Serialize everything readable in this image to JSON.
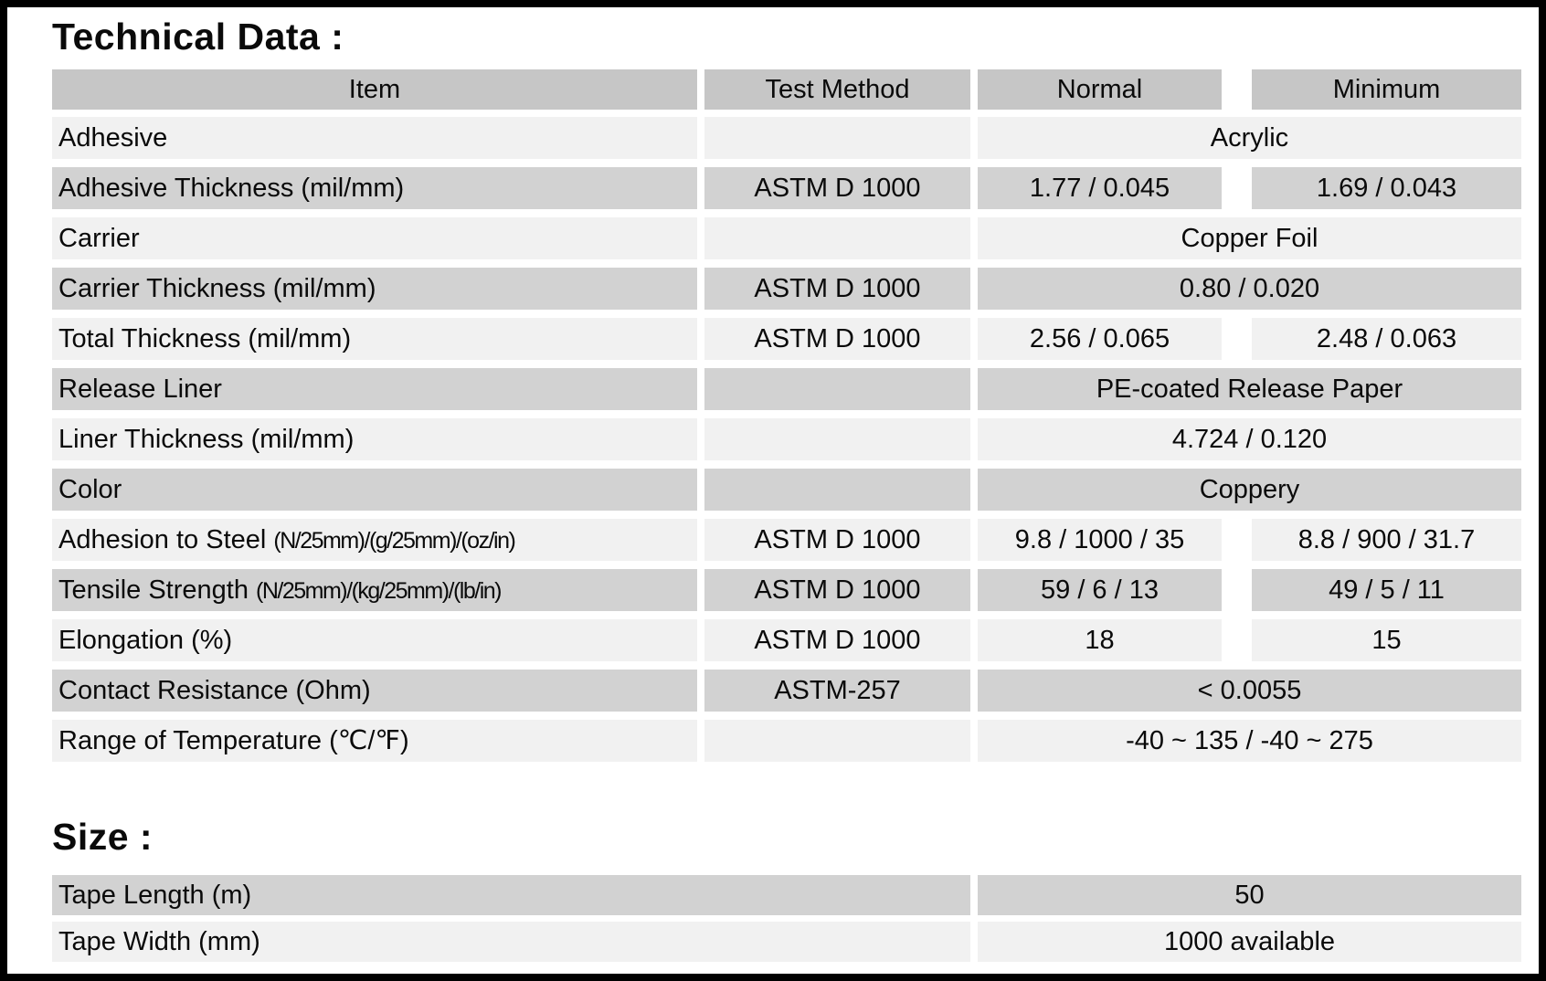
{
  "page": {
    "title": "Technical Data :",
    "size_heading": "Size :"
  },
  "colors": {
    "page_border": "#000000",
    "header_bg": "#c6c6c6",
    "row_gray_bg": "#d2d2d2",
    "row_light_bg": "#f1f1f1",
    "text": "#0a0a0a"
  },
  "table": {
    "headers": [
      "Item",
      "Test Method",
      "Normal",
      "Minimum"
    ],
    "rows": [
      {
        "item": "Adhesive",
        "method": "",
        "merged": "Acrylic"
      },
      {
        "item": "Adhesive Thickness (mil/mm)",
        "method": "ASTM D 1000",
        "normal": "1.77 / 0.045",
        "minimum": "1.69 / 0.043"
      },
      {
        "item": "Carrier",
        "method": "",
        "merged": "Copper Foil"
      },
      {
        "item": "Carrier Thickness (mil/mm)",
        "method": "ASTM D 1000",
        "merged": "0.80 / 0.020"
      },
      {
        "item": "Total Thickness (mil/mm)",
        "method": "ASTM D 1000",
        "normal": "2.56 / 0.065",
        "minimum": "2.48 / 0.063"
      },
      {
        "item": "Release Liner",
        "method": "",
        "merged": "PE-coated Release Paper"
      },
      {
        "item": "Liner Thickness (mil/mm)",
        "method": "",
        "merged": "4.724 / 0.120"
      },
      {
        "item": "Color",
        "method": "",
        "merged": "Coppery"
      },
      {
        "item": "Adhesion to Steel ",
        "units": "(N/25mm)/(g/25mm)/(oz/in)",
        "method": "ASTM D 1000",
        "normal": "9.8 / 1000 / 35",
        "minimum": "8.8 / 900 / 31.7"
      },
      {
        "item": "Tensile Strength ",
        "units": "(N/25mm)/(kg/25mm)/(lb/in)",
        "method": "ASTM D 1000",
        "normal": "59 / 6 / 13",
        "minimum": "49 / 5 / 11"
      },
      {
        "item": "Elongation (%)",
        "method": "ASTM D 1000",
        "normal": "18",
        "minimum": "15"
      },
      {
        "item": "Contact Resistance (Ohm)",
        "method": "ASTM-257",
        "merged": "< 0.0055"
      },
      {
        "item": "Range of Temperature (℃/℉)",
        "method": "",
        "merged": "-40 ~ 135 / -40 ~ 275"
      }
    ]
  },
  "size_table": {
    "rows": [
      {
        "label": "Tape Length (m)",
        "value": "50"
      },
      {
        "label": "Tape Width (mm)",
        "value": "1000 available"
      }
    ]
  }
}
